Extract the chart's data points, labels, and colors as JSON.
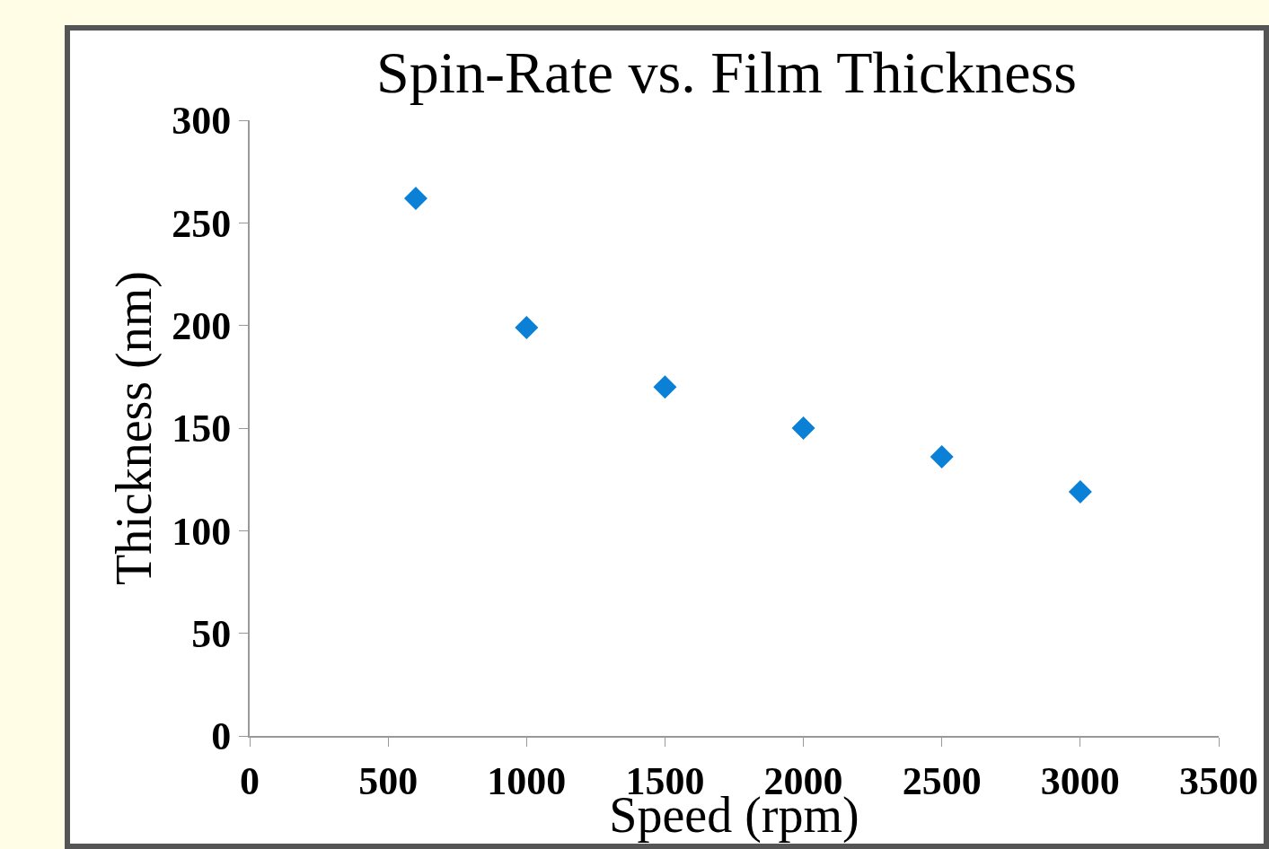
{
  "chart_data": {
    "type": "scatter",
    "title": "Spin-Rate vs. Film Thickness",
    "xlabel": "Speed (rpm)",
    "ylabel": "Thickness (nm)",
    "x": [
      600,
      1000,
      1500,
      2000,
      2500,
      3000
    ],
    "series": [
      {
        "color": "#0a80d6",
        "values": [
          262,
          199,
          170,
          150,
          136,
          119
        ]
      }
    ],
    "marker": "diamond",
    "xlim": [
      0,
      3500
    ],
    "xticks": [
      0,
      500,
      1000,
      1500,
      2000,
      2500,
      3000,
      3500
    ],
    "ylim": [
      0,
      300
    ],
    "yticks": [
      0,
      50,
      100,
      150,
      200,
      250,
      300
    ],
    "grid": false
  }
}
